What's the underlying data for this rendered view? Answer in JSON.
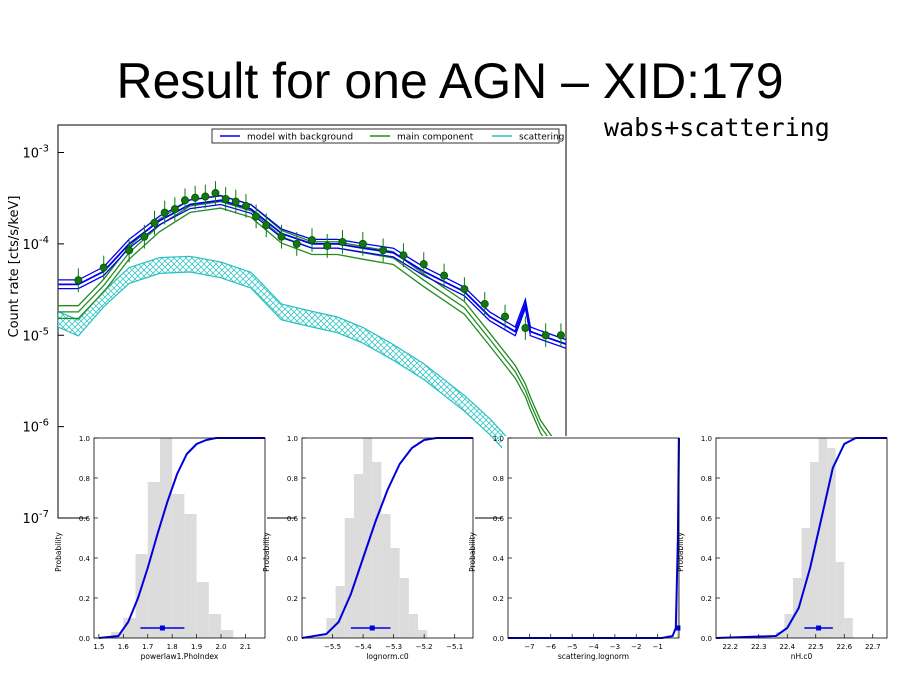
{
  "slide": {
    "title": "Result for one AGN – XID:179",
    "subtitle": "wabs+scattering"
  },
  "chart_data": [
    {
      "type": "line",
      "ylabel": "Count rate [cts/s/keV]",
      "yscale": "log",
      "ylim": [
        1e-07,
        0.002
      ],
      "ytick_labels": [
        {
          "value": 0.001,
          "base": "10",
          "exp": "-3"
        },
        {
          "value": 0.0001,
          "base": "10",
          "exp": "-4"
        },
        {
          "value": 1e-05,
          "base": "10",
          "exp": "-5"
        },
        {
          "value": 1e-06,
          "base": "10",
          "exp": "-6"
        },
        {
          "value": 1e-07,
          "base": "10",
          "exp": "-7"
        }
      ],
      "legend_position": "top",
      "legend": [
        {
          "name": "model with background",
          "color": "#0000ee"
        },
        {
          "name": "main component",
          "color": "#228b22"
        },
        {
          "name": "scattering",
          "color": "#29c0c0"
        }
      ],
      "x": [
        0,
        0.04,
        0.09,
        0.14,
        0.2,
        0.26,
        0.32,
        0.38,
        0.44,
        0.5,
        0.55,
        0.6,
        0.66,
        0.72,
        0.8,
        0.85,
        0.9,
        0.92,
        0.93,
        0.95,
        1.0
      ],
      "series": [
        {
          "name": "model with background",
          "color": "#0000ee",
          "values": [
            3.6e-05,
            3.6e-05,
            5e-05,
            0.0001,
            0.00018,
            0.00027,
            0.0003,
            0.00024,
            0.00013,
            0.0001,
            0.0001,
            9e-05,
            8e-05,
            5e-05,
            3e-05,
            1.6e-05,
            1.1e-05,
            2.2e-05,
            1.1e-05,
            1e-05,
            8e-06
          ]
        },
        {
          "name": "main component",
          "color": "#228b22",
          "values": [
            1.8e-05,
            1.8e-05,
            3.5e-05,
            8e-05,
            0.00016,
            0.00026,
            0.00029,
            0.00023,
            0.00012,
            9e-05,
            9e-05,
            8e-05,
            7e-05,
            4e-05,
            2e-05,
            9e-06,
            4e-06,
            2.5e-06,
            1.8e-06,
            1e-06,
            4e-07
          ]
        },
        {
          "name": "scattering",
          "color": "#29c0c0",
          "values": [
            1.5e-05,
            1.2e-05,
            2.5e-05,
            4.5e-05,
            5.8e-05,
            6e-05,
            5.2e-05,
            4e-05,
            1.8e-05,
            1.5e-05,
            1.3e-05,
            1e-05,
            6.5e-06,
            4e-06,
            1.8e-06,
            1e-06,
            5e-07,
            3e-07,
            2.5e-07,
            1.8e-07,
            1e-07
          ]
        }
      ],
      "data_points": {
        "x": [
          0.04,
          0.09,
          0.14,
          0.17,
          0.19,
          0.21,
          0.23,
          0.25,
          0.27,
          0.29,
          0.31,
          0.33,
          0.35,
          0.37,
          0.39,
          0.41,
          0.44,
          0.47,
          0.5,
          0.53,
          0.56,
          0.6,
          0.64,
          0.68,
          0.72,
          0.76,
          0.8,
          0.84,
          0.88,
          0.92,
          0.96,
          0.99
        ],
        "y": [
          4e-05,
          5.5e-05,
          8.5e-05,
          0.00012,
          0.00017,
          0.00022,
          0.00024,
          0.0003,
          0.00032,
          0.00033,
          0.00036,
          0.00031,
          0.00029,
          0.00026,
          0.0002,
          0.00016,
          0.00012,
          0.0001,
          0.00011,
          9.5e-05,
          0.000105,
          0.0001,
          8.5e-05,
          7.5e-05,
          6e-05,
          4.5e-05,
          3.2e-05,
          2.2e-05,
          1.6e-05,
          1.2e-05,
          1e-05,
          1e-05
        ],
        "color": "#0f7a0f"
      }
    },
    {
      "type": "area",
      "xlabel": "powerlaw1.PhoIndex",
      "ylabel": "Probability",
      "xlim": [
        1.48,
        2.18
      ],
      "ylim": [
        0,
        1
      ],
      "xticks": [
        1.5,
        1.6,
        1.7,
        1.8,
        1.9,
        2.0,
        2.1
      ],
      "xtick_labels": [
        "1.5",
        "1.6",
        "1.7",
        "1.8",
        "1.9",
        "2.0",
        "2.1"
      ],
      "yticks": [
        0,
        0.2,
        0.4,
        0.6,
        0.8,
        1.0
      ],
      "ytick_labels": [
        "0.0",
        "0.2",
        "0.4",
        "0.6",
        "0.8",
        "1.0"
      ],
      "histogram": {
        "edges": [
          1.55,
          1.6,
          1.65,
          1.7,
          1.75,
          1.8,
          1.85,
          1.9,
          1.95,
          2.0,
          2.05
        ],
        "heights": [
          0.03,
          0.1,
          0.42,
          0.78,
          1.0,
          0.72,
          0.62,
          0.28,
          0.12,
          0.04
        ]
      },
      "cdf": {
        "x": [
          1.5,
          1.58,
          1.62,
          1.66,
          1.7,
          1.74,
          1.78,
          1.82,
          1.86,
          1.9,
          1.94,
          1.98,
          2.04,
          2.18
        ],
        "y": [
          0,
          0.01,
          0.08,
          0.2,
          0.35,
          0.52,
          0.68,
          0.82,
          0.92,
          0.97,
          0.99,
          1,
          1,
          1
        ]
      },
      "estimate": {
        "value": 1.76,
        "low": 1.67,
        "high": 1.85,
        "y": 0.05
      }
    },
    {
      "type": "area",
      "xlabel": "lognorm.c0",
      "ylabel": "Probability",
      "xlim": [
        -5.6,
        -5.04
      ],
      "ylim": [
        0,
        1
      ],
      "xticks": [
        -5.5,
        -5.4,
        -5.3,
        -5.2,
        -5.1
      ],
      "xtick_labels": [
        "−5.5",
        "−5.4",
        "−5.3",
        "−5.2",
        "−5.1"
      ],
      "yticks": [
        0,
        0.2,
        0.4,
        0.6,
        0.8,
        1.0
      ],
      "ytick_labels": [
        "0.0",
        "0.2",
        "0.4",
        "0.6",
        "0.8",
        "1.0"
      ],
      "histogram": {
        "edges": [
          -5.55,
          -5.52,
          -5.49,
          -5.46,
          -5.43,
          -5.4,
          -5.37,
          -5.34,
          -5.31,
          -5.28,
          -5.25,
          -5.22,
          -5.19
        ],
        "heights": [
          0.02,
          0.1,
          0.26,
          0.6,
          0.82,
          1.0,
          0.88,
          0.62,
          0.45,
          0.3,
          0.12,
          0.04
        ]
      },
      "cdf": {
        "x": [
          -5.6,
          -5.52,
          -5.48,
          -5.44,
          -5.4,
          -5.36,
          -5.32,
          -5.28,
          -5.24,
          -5.2,
          -5.16,
          -5.1,
          -5.04
        ],
        "y": [
          0,
          0.02,
          0.08,
          0.22,
          0.4,
          0.58,
          0.74,
          0.87,
          0.95,
          0.99,
          1,
          1,
          1
        ]
      },
      "estimate": {
        "value": -5.37,
        "low": -5.44,
        "high": -5.31,
        "y": 0.05
      }
    },
    {
      "type": "area",
      "xlabel": "scattering.lognorm",
      "ylabel": "Probability",
      "xlim": [
        -8,
        0
      ],
      "ylim": [
        0,
        1
      ],
      "xticks": [
        -7,
        -6,
        -5,
        -4,
        -3,
        -2,
        -1
      ],
      "xtick_labels": [
        "−7",
        "−6",
        "−5",
        "−4",
        "−3",
        "−2",
        "−1"
      ],
      "yticks": [
        0,
        0.2,
        0.4,
        0.6,
        0.8,
        1.0
      ],
      "ytick_labels": [
        "0.0",
        "0.2",
        "0.4",
        "0.6",
        "0.8",
        "1.0"
      ],
      "histogram": {
        "edges": [
          -0.1,
          0
        ],
        "heights": [
          1.0
        ]
      },
      "cdf": {
        "x": [
          -8,
          -0.8,
          -0.3,
          -0.15,
          -0.05,
          0
        ],
        "y": [
          0,
          0,
          0.01,
          0.05,
          0.5,
          1
        ]
      },
      "estimate": {
        "value": -0.05,
        "low": -0.05,
        "high": -0.05,
        "y": 0.05
      }
    },
    {
      "type": "area",
      "xlabel": "nH.c0",
      "ylabel": "Probability",
      "xlim": [
        22.15,
        22.75
      ],
      "ylim": [
        0,
        1
      ],
      "xticks": [
        22.2,
        22.3,
        22.4,
        22.5,
        22.6,
        22.7
      ],
      "xtick_labels": [
        "22.2",
        "22.3",
        "22.4",
        "22.5",
        "22.6",
        "22.7"
      ],
      "yticks": [
        0,
        0.2,
        0.4,
        0.6,
        0.8,
        1.0
      ],
      "ytick_labels": [
        "0.0",
        "0.2",
        "0.4",
        "0.6",
        "0.8",
        "1.0"
      ],
      "histogram": {
        "edges": [
          22.36,
          22.39,
          22.42,
          22.45,
          22.48,
          22.51,
          22.54,
          22.57,
          22.6,
          22.63
        ],
        "heights": [
          0.03,
          0.12,
          0.3,
          0.55,
          0.88,
          1.0,
          0.95,
          0.38,
          0.1
        ]
      },
      "cdf": {
        "x": [
          22.15,
          22.36,
          22.4,
          22.44,
          22.48,
          22.52,
          22.56,
          22.6,
          22.64,
          22.7,
          22.75
        ],
        "y": [
          0,
          0.01,
          0.05,
          0.15,
          0.35,
          0.6,
          0.85,
          0.97,
          1,
          1,
          1
        ]
      },
      "estimate": {
        "value": 22.51,
        "low": 22.46,
        "high": 22.56,
        "y": 0.05
      }
    }
  ]
}
